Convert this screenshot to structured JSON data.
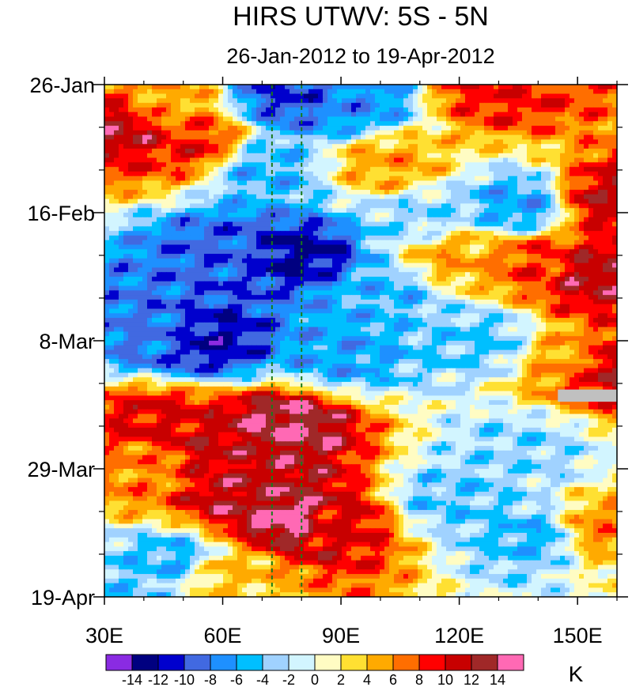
{
  "chart_data": {
    "type": "heatmap",
    "title": "HIRS UTWV: 5S - 5N",
    "subtitle": "26-Jan-2012 to 19-Apr-2012",
    "x_axis": {
      "range": [
        30,
        160
      ],
      "tick_values": [
        30,
        60,
        90,
        120,
        150
      ],
      "tick_labels": [
        "30E",
        "60E",
        "90E",
        "120E",
        "150E"
      ]
    },
    "y_axis": {
      "range_days": [
        0,
        84
      ],
      "tick_values": [
        0,
        21,
        42,
        63,
        84
      ],
      "tick_labels": [
        "26-Jan",
        "16-Feb",
        "8-Mar",
        "29-Mar",
        "19-Apr"
      ]
    },
    "reference_lines_lon": [
      72.5,
      80
    ],
    "missing_data_box": {
      "lon": [
        145,
        160
      ],
      "day": [
        50,
        52
      ]
    },
    "colorbar": {
      "unit": "K",
      "levels": [
        -14,
        -12,
        -10,
        -8,
        -6,
        -4,
        -2,
        0,
        2,
        4,
        6,
        8,
        10,
        12,
        14
      ],
      "label_levels": [
        -14,
        -12,
        -10,
        -8,
        -6,
        -4,
        -2,
        0,
        2,
        4,
        6,
        8,
        10,
        12,
        14
      ],
      "colors": [
        "#8a2be2",
        "#000080",
        "#0000cd",
        "#4169e1",
        "#1e90ff",
        "#00bfff",
        "#a0d2ff",
        "#d2f5ff",
        "#fffcc3",
        "#ffe032",
        "#ffaa00",
        "#ff6e00",
        "#ff0000",
        "#c80000",
        "#a02828",
        "#ff69b4"
      ]
    },
    "field_features": [
      {
        "lon": 36,
        "day": 7,
        "value": 12
      },
      {
        "lon": 52,
        "day": 10,
        "value": 9
      },
      {
        "lon": 44,
        "day": 4,
        "value": 5
      },
      {
        "lon": 78,
        "day": 2,
        "value": -10
      },
      {
        "lon": 92,
        "day": 3,
        "value": -7
      },
      {
        "lon": 130,
        "day": 1,
        "value": 9
      },
      {
        "lon": 102,
        "day": 13,
        "value": 5
      },
      {
        "lon": 70,
        "day": 14,
        "value": -5
      },
      {
        "lon": 135,
        "day": 20,
        "value": -6
      },
      {
        "lon": 158,
        "day": 19,
        "value": 11
      },
      {
        "lon": 62,
        "day": 27,
        "value": -9
      },
      {
        "lon": 80,
        "day": 28,
        "value": -12
      },
      {
        "lon": 100,
        "day": 34,
        "value": -5
      },
      {
        "lon": 118,
        "day": 28,
        "value": 5
      },
      {
        "lon": 140,
        "day": 29,
        "value": 8
      },
      {
        "lon": 155,
        "day": 31,
        "value": 12
      },
      {
        "lon": 56,
        "day": 42,
        "value": -12
      },
      {
        "lon": 45,
        "day": 41,
        "value": -8
      },
      {
        "lon": 90,
        "day": 44,
        "value": -6
      },
      {
        "lon": 150,
        "day": 45,
        "value": 5
      },
      {
        "lon": 158,
        "day": 46,
        "value": 12
      },
      {
        "lon": 44,
        "day": 55,
        "value": 10
      },
      {
        "lon": 75,
        "day": 56,
        "value": 14
      },
      {
        "lon": 60,
        "day": 60,
        "value": 11
      },
      {
        "lon": 66,
        "day": 68,
        "value": 12
      },
      {
        "lon": 76,
        "day": 71,
        "value": 15
      },
      {
        "lon": 88,
        "day": 72,
        "value": 10
      },
      {
        "lon": 40,
        "day": 63,
        "value": 6
      },
      {
        "lon": 118,
        "day": 68,
        "value": -4
      },
      {
        "lon": 140,
        "day": 74,
        "value": -5
      },
      {
        "lon": 155,
        "day": 73,
        "value": 6
      },
      {
        "lon": 48,
        "day": 78,
        "value": -5
      },
      {
        "lon": 60,
        "day": 80,
        "value": 4
      },
      {
        "lon": 35,
        "day": 83,
        "value": -4
      },
      {
        "lon": 110,
        "day": 22,
        "value": -3
      },
      {
        "lon": 125,
        "day": 42,
        "value": -4
      },
      {
        "lon": 135,
        "day": 60,
        "value": -3
      }
    ]
  }
}
